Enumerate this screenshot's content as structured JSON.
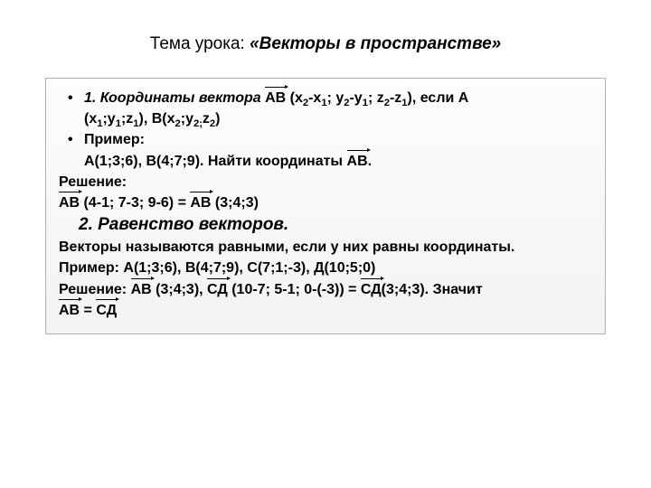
{
  "colors": {
    "background": "#ffffff",
    "text": "#000000",
    "box_border": "#b0b0b0",
    "box_gradient_top": "#fdfdfd",
    "box_gradient_bottom": "#f3f3f3"
  },
  "typography": {
    "title_fontsize": 19,
    "body_fontsize": 16,
    "section_fontsize": 19,
    "font_family": "Arial"
  },
  "title": {
    "prefix": "Тема урока: ",
    "main": "«Векторы в пространстве»"
  },
  "section1": {
    "heading_prefix": "1. Координаты вектора  ",
    "vec_label": "АВ",
    "formula_part1a": " (х",
    "formula_part1b": "-х",
    "formula_part1c": ";  у",
    "formula_part1d": "-у",
    "formula_part1e": ";  z",
    "formula_part1f": "-z",
    "formula_part1g": "), если А",
    "formula_cont_a": "(х",
    "formula_cont_b": ";у",
    "formula_cont_c": ";z",
    "formula_cont_d": "),  В(х",
    "formula_cont_e": ";у",
    "formula_cont_f": "z",
    "formula_cont_g": ")",
    "sub_vals": {
      "two": "2",
      "one": "1",
      "semicolon": "2;"
    },
    "example_label": "Пример:",
    "example_text_a": "А(1;3;6),  В(4;7;9). Найти координаты ",
    "example_vec": "АВ",
    "example_dot": ".",
    "solution_label": "Решение:",
    "solution_vec1": "АВ",
    "solution_mid": " (4-1; 7-3; 9-6) =  ",
    "solution_vec2": "АВ",
    "solution_end": " (3;4;3)"
  },
  "section2": {
    "heading": "2. Равенство векторов.",
    "def": "Векторы называются равными, если у них равны координаты.",
    "example": "Пример: А(1;3;6),  В(4;7;9), С(7;1;-3), Д(10;5;0)",
    "sol_prefix": "Решение: ",
    "sol_vec1": "АВ",
    "sol_mid1": " (3;4;3), ",
    "sol_vec2": "СД",
    "sol_mid2": " (10-7; 5-1; 0-(-3)) = ",
    "sol_vec3": "СД",
    "sol_mid3": "(3;4;3). Значит",
    "concl_vec1": "АВ",
    "concl_eq": " = ",
    "concl_vec2": "СД"
  }
}
